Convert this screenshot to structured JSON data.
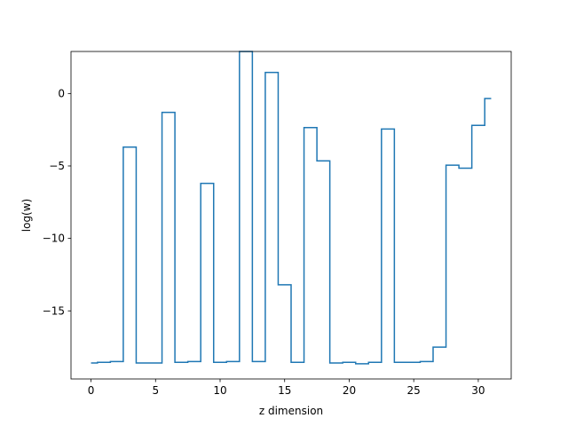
{
  "chart_data": {
    "type": "line",
    "drawstyle": "steps-mid",
    "title": "",
    "xlabel": "z dimension",
    "ylabel": "log(w)",
    "xlim": [
      -1.55,
      32.55
    ],
    "ylim": [
      -19.7,
      2.9
    ],
    "xticks": [
      0,
      5,
      10,
      15,
      20,
      25,
      30
    ],
    "yticks": [
      0,
      -5,
      -10,
      -15
    ],
    "ytick_labels": [
      "0",
      "−5",
      "−10",
      "−15"
    ],
    "grid": false,
    "line_color": "#1f77b4",
    "series": [
      {
        "x": [
          0,
          1,
          2,
          3,
          4,
          5,
          6,
          7,
          8,
          9,
          10,
          11,
          12,
          13,
          14,
          15,
          16,
          17,
          18,
          19,
          20,
          21,
          22,
          23,
          24,
          25,
          26,
          27,
          28,
          29,
          30,
          31
        ],
        "values": [
          -18.6,
          -18.55,
          -18.5,
          -3.7,
          -18.6,
          -18.6,
          -1.3,
          -18.55,
          -18.5,
          -6.2,
          -18.55,
          -18.5,
          2.9,
          -18.5,
          1.45,
          -13.2,
          -18.55,
          -2.35,
          -4.65,
          -18.6,
          -18.55,
          -18.65,
          -18.55,
          -2.45,
          -18.55,
          -18.55,
          -18.5,
          -17.5,
          -4.95,
          -5.15,
          -2.2,
          -0.35
        ]
      }
    ]
  }
}
